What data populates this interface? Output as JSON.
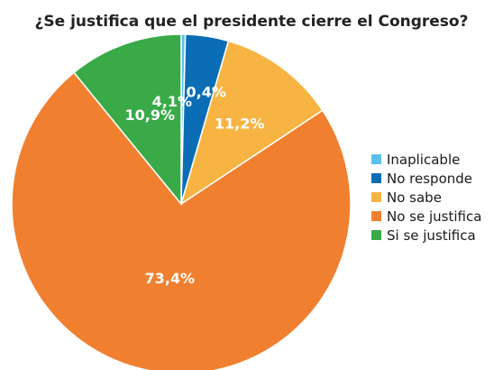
{
  "chart_data": {
    "type": "pie",
    "title": "¿Se justifica que el presidente cierre el Congreso?",
    "legend_position": "right",
    "slices": [
      {
        "label": "Inaplicable",
        "value": 0.4,
        "display": "0,4%",
        "color": "#5bc0eb"
      },
      {
        "label": "No responde",
        "value": 4.1,
        "display": "4,1%",
        "color": "#0a6db5"
      },
      {
        "label": "No sabe",
        "value": 11.2,
        "display": "11,2%",
        "color": "#f7b443"
      },
      {
        "label": "No se justifica",
        "value": 73.4,
        "display": "73,4%",
        "color": "#f08030"
      },
      {
        "label": "Si se justifica",
        "value": 10.9,
        "display": "10,9%",
        "color": "#3aaa48"
      }
    ]
  }
}
